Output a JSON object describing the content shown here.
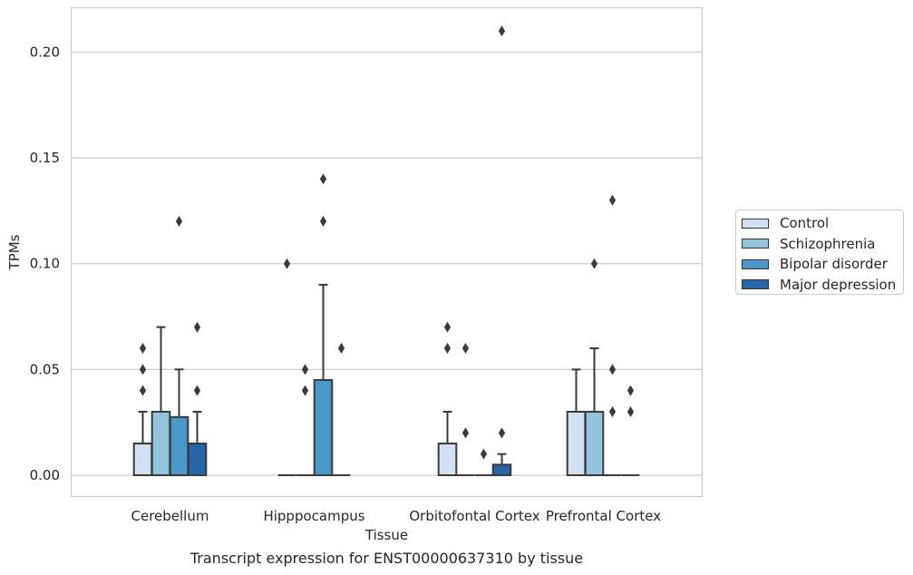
{
  "chart_data": {
    "type": "box",
    "xlabel": "Tissue",
    "ylabel": "TPMs",
    "caption": "Transcript expression for ENST00000637310 by tissue",
    "ylim": [
      -0.01,
      0.22
    ],
    "yticks": [
      "0.00",
      "0.05",
      "0.10",
      "0.15",
      "0.20"
    ],
    "ytick_values": [
      0,
      0.05,
      0.1,
      0.15,
      0.2
    ],
    "grid": "horizontal",
    "legend_position": "right",
    "categories": [
      "Cerebellum",
      "Hipppocampus",
      "Orbitofontal Cortex",
      "Prefrontal Cortex"
    ],
    "series": [
      {
        "name": "Control",
        "color": "#cfe1f2",
        "boxes": [
          {
            "q1": 0,
            "median": 0,
            "q3": 0.015,
            "wlo": 0,
            "whi": 0.03,
            "outliers": [
              0.04,
              0.05,
              0.06
            ]
          },
          {
            "q1": 0,
            "median": 0,
            "q3": 0,
            "wlo": 0,
            "whi": 0,
            "outliers": [
              0.1
            ]
          },
          {
            "q1": 0,
            "median": 0,
            "q3": 0.015,
            "wlo": 0,
            "whi": 0.03,
            "outliers": [
              0.06,
              0.07
            ]
          },
          {
            "q1": 0,
            "median": 0,
            "q3": 0.03,
            "wlo": 0,
            "whi": 0.05,
            "outliers": []
          }
        ]
      },
      {
        "name": "Schizophrenia",
        "color": "#93c4de",
        "boxes": [
          {
            "q1": 0,
            "median": 0,
            "q3": 0.03,
            "wlo": 0,
            "whi": 0.07,
            "outliers": []
          },
          {
            "q1": 0,
            "median": 0,
            "q3": 0,
            "wlo": 0,
            "whi": 0,
            "outliers": [
              0.04,
              0.05
            ]
          },
          {
            "q1": 0,
            "median": 0,
            "q3": 0,
            "wlo": 0,
            "whi": 0,
            "outliers": [
              0.02,
              0.06
            ]
          },
          {
            "q1": 0,
            "median": 0,
            "q3": 0.03,
            "wlo": 0,
            "whi": 0.06,
            "outliers": [
              0.1
            ]
          }
        ]
      },
      {
        "name": "Bipolar disorder",
        "color": "#4a98c9",
        "boxes": [
          {
            "q1": 0,
            "median": 0,
            "q3": 0.0275,
            "wlo": 0,
            "whi": 0.05,
            "outliers": [
              0.12
            ]
          },
          {
            "q1": 0,
            "median": 0,
            "q3": 0.045,
            "wlo": 0,
            "whi": 0.09,
            "outliers": [
              0.12,
              0.14
            ]
          },
          {
            "q1": 0,
            "median": 0,
            "q3": 0,
            "wlo": 0,
            "whi": 0,
            "outliers": [
              0.01
            ]
          },
          {
            "q1": 0,
            "median": 0,
            "q3": 0,
            "wlo": 0,
            "whi": 0,
            "outliers": [
              0.05,
              0.03,
              0.13
            ]
          }
        ]
      },
      {
        "name": "Major depression",
        "color": "#2565a8",
        "boxes": [
          {
            "q1": 0,
            "median": 0,
            "q3": 0.015,
            "wlo": 0,
            "whi": 0.03,
            "outliers": [
              0.04,
              0.07
            ]
          },
          {
            "q1": 0,
            "median": 0,
            "q3": 0,
            "wlo": 0,
            "whi": 0,
            "outliers": [
              0.06
            ]
          },
          {
            "q1": 0,
            "median": 0,
            "q3": 0.005,
            "wlo": 0,
            "whi": 0.01,
            "outliers": [
              0.02,
              0.21
            ]
          },
          {
            "q1": 0,
            "median": 0,
            "q3": 0,
            "wlo": 0,
            "whi": 0,
            "outliers": [
              0.03,
              0.04
            ]
          }
        ]
      }
    ]
  }
}
